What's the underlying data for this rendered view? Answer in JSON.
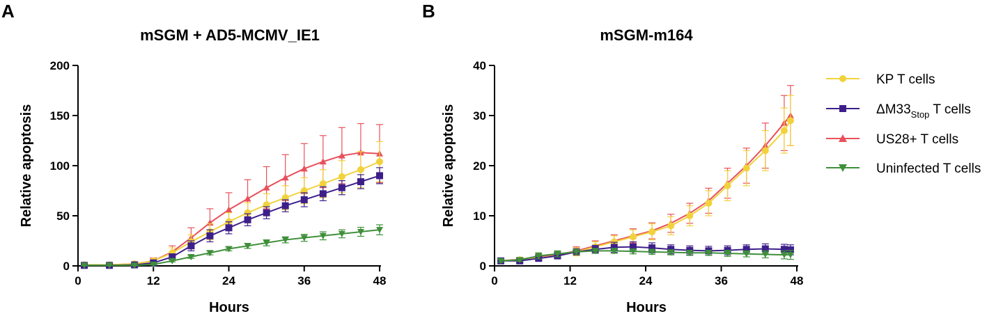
{
  "chart_data": [
    {
      "type": "line",
      "panel_letter": "A",
      "title": "mSGM + AD5-MCMV_IE1",
      "xlabel": "Hours",
      "ylabel": "Relative apoptosis",
      "xlim": [
        0,
        48
      ],
      "ylim": [
        0,
        200
      ],
      "xticks": [
        "0",
        "12",
        "24",
        "36",
        "48"
      ],
      "yticks": [
        "0",
        "50",
        "100",
        "150",
        "200"
      ],
      "x": [
        1,
        5,
        9,
        12,
        15,
        18,
        21,
        24,
        27,
        30,
        33,
        36,
        39,
        42,
        45,
        48
      ],
      "series": [
        {
          "name": "US28+ T cells",
          "color": "#e8505b",
          "marker": "triangle-up",
          "values": [
            1,
            1,
            2,
            5,
            14,
            28,
            43,
            56,
            67,
            78,
            88,
            97,
            104,
            110,
            113,
            112
          ],
          "errors": [
            0.5,
            0.5,
            1,
            3,
            6,
            10,
            14,
            17,
            19,
            21,
            23,
            25,
            26,
            28,
            29,
            29
          ]
        },
        {
          "name": "KP T cells",
          "color": "#f2d23c",
          "marker": "circle",
          "values": [
            1,
            1,
            2,
            5,
            13,
            24,
            34,
            44,
            53,
            61,
            68,
            75,
            82,
            89,
            96,
            104
          ],
          "errors": [
            0.5,
            0.5,
            1,
            2,
            5,
            7,
            8,
            9,
            10,
            11,
            12,
            13,
            14,
            16,
            18,
            20
          ]
        },
        {
          "name": "ΔM33 T cells",
          "color": "#3d1f8a",
          "marker": "square",
          "values": [
            0.5,
            0.5,
            1,
            3,
            9,
            20,
            30,
            38,
            46,
            53,
            60,
            66,
            72,
            78,
            84,
            90
          ],
          "errors": [
            0.3,
            0.3,
            0.5,
            1.5,
            3,
            5,
            6,
            6,
            6,
            6,
            6,
            7,
            7,
            7,
            7,
            8
          ]
        },
        {
          "name": "Uninfected T cells",
          "color": "#3f8f3a",
          "marker": "triangle-down",
          "values": [
            0.5,
            0.5,
            0.5,
            1.5,
            5,
            9,
            13,
            17,
            20,
            23,
            26,
            28,
            30,
            32,
            34,
            36
          ],
          "errors": [
            0.2,
            0.2,
            0.3,
            0.5,
            1,
            1.5,
            2,
            2,
            2.5,
            3,
            3,
            3.5,
            4,
            4,
            4.5,
            5
          ]
        }
      ]
    },
    {
      "type": "line",
      "panel_letter": "B",
      "title": "mSGM-m164",
      "xlabel": "Hours",
      "ylabel": "Relative apoptosis",
      "xlim": [
        0,
        48
      ],
      "ylim": [
        0,
        40
      ],
      "xticks": [
        "0",
        "12",
        "24",
        "36",
        "48"
      ],
      "yticks": [
        "0",
        "10",
        "20",
        "30",
        "40"
      ],
      "x": [
        1,
        4,
        7,
        10,
        13,
        16,
        19,
        22,
        25,
        28,
        31,
        34,
        37,
        40,
        43,
        46,
        47
      ],
      "series": [
        {
          "name": "US28+ T cells",
          "color": "#e8505b",
          "marker": "triangle-up",
          "values": [
            1,
            1.3,
            1.8,
            2.2,
            3,
            4,
            5,
            6,
            7,
            8.5,
            10.5,
            13,
            16.5,
            20,
            24,
            28.5,
            30
          ],
          "errors": [
            0.3,
            0.4,
            0.5,
            0.6,
            0.8,
            1,
            1.2,
            1.4,
            1.6,
            1.8,
            2,
            2.5,
            3,
            3.5,
            4.5,
            5.5,
            6
          ]
        },
        {
          "name": "KP T cells",
          "color": "#f2d23c",
          "marker": "circle",
          "values": [
            1,
            1.2,
            1.6,
            2,
            2.8,
            3.8,
            4.8,
            5.8,
            6.8,
            8,
            10,
            12.5,
            16,
            19.5,
            23,
            27,
            29
          ],
          "errors": [
            0.3,
            0.4,
            0.5,
            0.6,
            0.8,
            1,
            1.2,
            1.4,
            1.6,
            1.8,
            2,
            2.5,
            3,
            3.5,
            4,
            4.5,
            5
          ]
        },
        {
          "name": "ΔM33 T cells",
          "color": "#3d1f8a",
          "marker": "square",
          "values": [
            1,
            1,
            1.5,
            2,
            2.8,
            3.3,
            3.7,
            3.8,
            3.6,
            3.3,
            3.1,
            3,
            3.1,
            3.3,
            3.4,
            3.3,
            3.2
          ],
          "errors": [
            0.3,
            0.3,
            0.4,
            0.5,
            0.6,
            0.8,
            1,
            1,
            1,
            0.9,
            0.9,
            0.9,
            0.9,
            0.9,
            1,
            1,
            1
          ]
        },
        {
          "name": "Uninfected T cells",
          "color": "#3f8f3a",
          "marker": "triangle-down",
          "values": [
            1,
            1.2,
            2,
            2.4,
            2.8,
            3,
            3,
            2.9,
            2.8,
            2.7,
            2.6,
            2.6,
            2.5,
            2.4,
            2.3,
            2.2,
            2.2
          ],
          "errors": [
            0.3,
            0.3,
            0.6,
            0.6,
            0.5,
            0.5,
            0.5,
            0.5,
            0.5,
            0.5,
            0.5,
            0.5,
            0.6,
            0.6,
            0.7,
            0.8,
            0.9
          ]
        }
      ]
    }
  ],
  "legend": {
    "placement": "right",
    "items": [
      {
        "label": "KP T cells",
        "color": "#f2d23c",
        "marker": "circle"
      },
      {
        "label_main": "ΔM33",
        "label_sub": "Stop",
        "label_rest": " T cells",
        "color": "#3d1f8a",
        "marker": "square"
      },
      {
        "label": "US28+ T cells",
        "color": "#e8505b",
        "marker": "triangle-up"
      },
      {
        "label": "Uninfected T cells",
        "color": "#3f8f3a",
        "marker": "triangle-down"
      }
    ]
  }
}
